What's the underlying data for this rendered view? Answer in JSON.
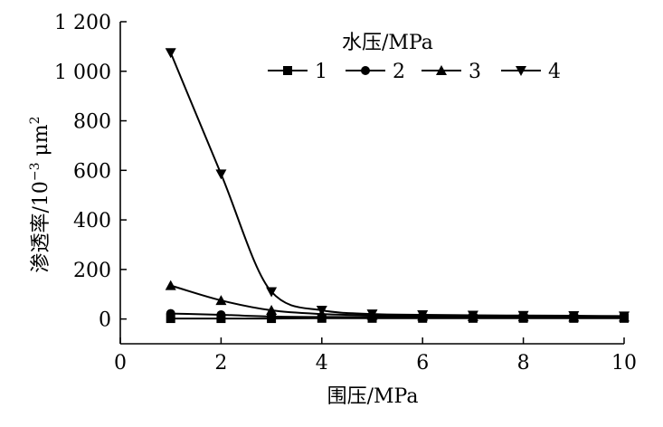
{
  "chart_data": {
    "type": "line",
    "xlabel": "围压/MPa",
    "ylabel_main": "渗透率/10",
    "ylabel_exp": "−3",
    "ylabel_unit": " μm",
    "ylabel_unit_exp": "2",
    "xlim": [
      0,
      10
    ],
    "ylim": [
      -100,
      1200
    ],
    "x_ticks": [
      0,
      2,
      4,
      6,
      8,
      10
    ],
    "x_tick_labels": [
      "0",
      "2",
      "4",
      "6",
      "8",
      "10"
    ],
    "y_ticks": [
      0,
      200,
      400,
      600,
      800,
      1000,
      1200
    ],
    "y_tick_labels": [
      "0",
      "200",
      "400",
      "600",
      "800",
      "1 000",
      "1 200"
    ],
    "legend_title": "水压/MPa",
    "legend_position": "top-right",
    "grid": false,
    "x": [
      1,
      2,
      3,
      4,
      5,
      6,
      7,
      8,
      9,
      10
    ],
    "series": [
      {
        "name": "1",
        "marker": "square",
        "values": [
          2,
          2,
          2,
          3,
          3,
          3,
          3,
          3,
          3,
          3
        ]
      },
      {
        "name": "2",
        "marker": "circle",
        "values": [
          22,
          17,
          10,
          8,
          8,
          7,
          7,
          7,
          7,
          7
        ]
      },
      {
        "name": "3",
        "marker": "triangle-up",
        "values": [
          135,
          75,
          35,
          20,
          15,
          12,
          10,
          9,
          8,
          8
        ]
      },
      {
        "name": "4",
        "marker": "triangle-down",
        "values": [
          1075,
          585,
          110,
          35,
          20,
          17,
          15,
          14,
          13,
          12
        ]
      }
    ]
  }
}
